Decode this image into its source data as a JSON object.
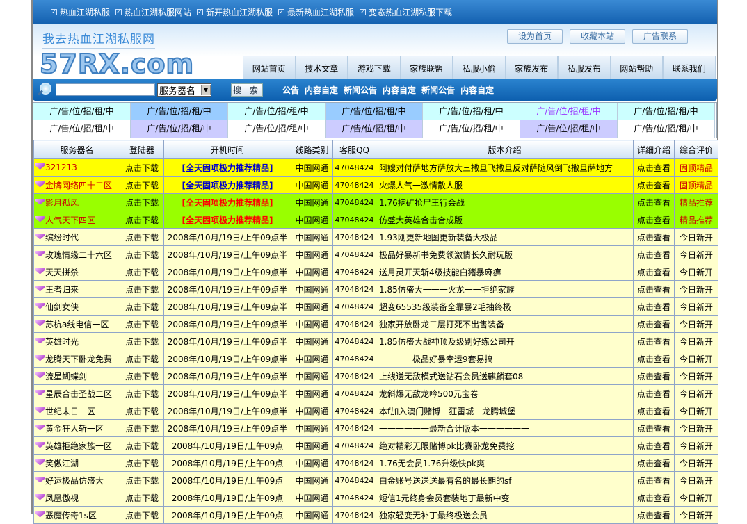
{
  "topbar": {
    "links": [
      "热血江湖私服",
      "热血江湖私服网站",
      "新开热血江湖私服",
      "最新热血江湖私服",
      "变态热血江湖私服下载"
    ]
  },
  "header": {
    "slogan": "我去热血江湖私服网",
    "logo": "57RX.com",
    "buttons": [
      "设为首页",
      "收藏本站",
      "广告联系"
    ],
    "nav": [
      "网站首页",
      "技术文章",
      "游戏下载",
      "家族联盟",
      "私服小偷",
      "家族发布",
      "私服发布",
      "网站帮助",
      "联系我们"
    ]
  },
  "search": {
    "value": "",
    "select": "服务器名",
    "button": "搜 索",
    "notices": [
      "公告",
      "内容自定",
      "新闻公告",
      "内容自定",
      "新闻公告",
      "内容自定"
    ]
  },
  "ads": {
    "rows": [
      [
        {
          "t": "广/告/位/招/租/中",
          "bg": "#ccffff",
          "c": "#000"
        },
        {
          "t": "广/告/位/招/租/中",
          "bg": "#99ccff",
          "c": "#000"
        },
        {
          "t": "广/告/位/招/租/中",
          "bg": "#ccffff",
          "c": "#000"
        },
        {
          "t": "广/告/位/招/租/中",
          "bg": "#99ccff",
          "c": "#000"
        },
        {
          "t": "广/告/位/招/租/中",
          "bg": "#ccffff",
          "c": "#000"
        },
        {
          "t": "广/告/位/招/租/中",
          "bg": "#ccffff",
          "c": "#9933ff"
        },
        {
          "t": "广/告/位/招/租/中",
          "bg": "#ccffff",
          "c": "#000"
        }
      ],
      [
        {
          "t": "广/告/位/招/租/中",
          "bg": "#ffffff",
          "c": "#000"
        },
        {
          "t": "广/告/位/招/租/中",
          "bg": "#ccccff",
          "c": "#000"
        },
        {
          "t": "广/告/位/招/租/中",
          "bg": "#ffffff",
          "c": "#000"
        },
        {
          "t": "广/告/位/招/租/中",
          "bg": "#ccccff",
          "c": "#000"
        },
        {
          "t": "广/告/位/招/租/中",
          "bg": "#ffffff",
          "c": "#000"
        },
        {
          "t": "广/告/位/招/租/中",
          "bg": "#ccccff",
          "c": "#000"
        },
        {
          "t": "广/告/位/招/租/中",
          "bg": "#ffffff",
          "c": "#000"
        }
      ]
    ]
  },
  "table": {
    "headers": [
      "服务器名",
      "登陆器",
      "开机时间",
      "线路类别",
      "客服QQ",
      "版本介绍",
      "详细介绍",
      "综合评价"
    ],
    "rows": [
      {
        "name": "321213",
        "dl": "点击下载",
        "time": "[全天固项极力推荐精品]",
        "line": "中国网通",
        "qq": "47048424",
        "ver": "阿嫂对付萨地方萨放大三撒旦飞撒旦反对萨随风倒飞撒旦萨地方",
        "detail": "点击查看",
        "rate": "固顶精品",
        "bg": "#ffff00",
        "nameColor": "#cc0000",
        "timeColor": "#0000cc",
        "rateColor": "#cc0000"
      },
      {
        "name": "金牌网络四十二区",
        "dl": "点击下载",
        "time": "[全天固项极力推荐精品]",
        "line": "中国网通",
        "qq": "47048424",
        "ver": "火爆人气一激情散人服",
        "detail": "点击查看",
        "rate": "固顶精品",
        "bg": "#ffff00",
        "nameColor": "#cc0000",
        "timeColor": "#0000cc",
        "rateColor": "#cc0000"
      },
      {
        "name": "影月孤风",
        "dl": "点击下载",
        "time": "[全天固项极力推荐精品]",
        "line": "中国网通",
        "qq": "47048424",
        "ver": "1.76挖矿抢尸王行会战",
        "detail": "点击查看",
        "rate": "精品推荐",
        "bg": "#99ff00",
        "nameColor": "#cc0000",
        "timeColor": "#ff0000",
        "rateColor": "#cc0000"
      },
      {
        "name": "人气天下四区",
        "dl": "点击下载",
        "time": "[全天固项极力推荐精品]",
        "line": "中国网通",
        "qq": "47048424",
        "ver": "仿盛大英雄合击合成版",
        "detail": "点击查看",
        "rate": "精品推荐",
        "bg": "#99ff00",
        "nameColor": "#cc0000",
        "timeColor": "#ff0000",
        "rateColor": "#cc0000"
      },
      {
        "name": "缤纷时代",
        "dl": "点击下载",
        "time": "2008年/10月/19日/上午09点半",
        "line": "中国网通",
        "qq": "47048424",
        "ver": "1.93刚更新地图更新装备大极品",
        "detail": "点击查看",
        "rate": "今日新开"
      },
      {
        "name": "玫瑰情缘二十六区",
        "dl": "点击下载",
        "time": "2008年/10月/19日/上午09点半",
        "line": "中国网通",
        "qq": "47048424",
        "ver": "极品好暴新书免费领激情长久耐玩版",
        "detail": "点击查看",
        "rate": "今日新开"
      },
      {
        "name": "天天拼杀",
        "dl": "点击下载",
        "time": "2008年/10月/19日/上午09点半",
        "line": "中国网通",
        "qq": "47048424",
        "ver": "送月灵开天斩4级技能白猪暴麻痹",
        "detail": "点击查看",
        "rate": "今日新开"
      },
      {
        "name": "王者归来",
        "dl": "点击下载",
        "time": "2008年/10月/19日/上午09点半",
        "line": "中国网通",
        "qq": "47048424",
        "ver": "1.85仿盛大一一一火龙一一拒绝家族",
        "detail": "点击查看",
        "rate": "今日新开"
      },
      {
        "name": "仙剑女侠",
        "dl": "点击下载",
        "time": "2008年/10月/19日/上午09点半",
        "line": "中国网通",
        "qq": "47048424",
        "ver": "超变65535级装备全靠暴2毛抽终极",
        "detail": "点击查看",
        "rate": "今日新开"
      },
      {
        "name": "苏杭a线电信一区",
        "dl": "点击下载",
        "time": "2008年/10月/19日/上午09点半",
        "line": "中国网通",
        "qq": "47048424",
        "ver": "独家开放卧龙二层打死不出售装备",
        "detail": "点击查看",
        "rate": "今日新开"
      },
      {
        "name": "英雄时光",
        "dl": "点击下载",
        "time": "2008年/10月/19日/上午09点半",
        "line": "中国网通",
        "qq": "47048424",
        "ver": "1.85仿盛大战神顶及级别好练公司开",
        "detail": "点击查看",
        "rate": "今日新开"
      },
      {
        "name": "龙腾天下卧龙免费",
        "dl": "点击下载",
        "time": "2008年/10月/19日/上午09点半",
        "line": "中国网通",
        "qq": "47048424",
        "ver": "一一一一极品好暴幸运9套易搞一一一",
        "detail": "点击查看",
        "rate": "今日新开"
      },
      {
        "name": "流星蝴蝶剑",
        "dl": "点击下载",
        "time": "2008年/10月/19日/上午09点半",
        "line": "中国网通",
        "qq": "47048424",
        "ver": "上线送无敌模式送钻石会员送麒麟套08",
        "detail": "点击查看",
        "rate": "今日新开"
      },
      {
        "name": "星辰合击圣战二区",
        "dl": "点击下载",
        "time": "2008年/10月/19日/上午09点半",
        "line": "中国网通",
        "qq": "47048424",
        "ver": "龙斜爆无敌龙吟500元宝卷",
        "detail": "点击查看",
        "rate": "今日新开"
      },
      {
        "name": "世纪末日一区",
        "dl": "点击下载",
        "time": "2008年/10月/19日/上午09点半",
        "line": "中国网通",
        "qq": "47048424",
        "ver": "本f加入澳门赌博一狂雷城一龙腾城堡一",
        "detail": "点击查看",
        "rate": "今日新开"
      },
      {
        "name": "黄金狂人斩一区",
        "dl": "点击下载",
        "time": "2008年/10月/19日/上午09点半",
        "line": "中国网通",
        "qq": "47048424",
        "ver": "一一一一一一最新合计版本一一一一一一",
        "detail": "点击查看",
        "rate": "今日新开"
      },
      {
        "name": "英雄拒绝家族一区",
        "dl": "点击下载",
        "time": "2008年/10月/19日/上午09点",
        "line": "中国网通",
        "qq": "47048424",
        "ver": "绝对精彩无限赌博pk比赛卧龙免费挖",
        "detail": "点击查看",
        "rate": "今日新开"
      },
      {
        "name": "笑傲江湖",
        "dl": "点击下载",
        "time": "2008年/10月/19日/上午09点",
        "line": "中国网通",
        "qq": "47048424",
        "ver": "1.76无会员1.76升级快pk爽",
        "detail": "点击查看",
        "rate": "今日新开"
      },
      {
        "name": "好运极品仿盛大",
        "dl": "点击下载",
        "time": "2008年/10月/19日/上午09点",
        "line": "中国网通",
        "qq": "47048424",
        "ver": "白金账号送送送最有名的最长期的sf",
        "detail": "点击查看",
        "rate": "今日新开"
      },
      {
        "name": "凤凰傲视",
        "dl": "点击下载",
        "time": "2008年/10月/19日/上午09点",
        "line": "中国网通",
        "qq": "47048424",
        "ver": "短信1元终身会员套装地丁最新中变",
        "detail": "点击查看",
        "rate": "今日新开"
      },
      {
        "name": "恶魔传奇1s区",
        "dl": "点击下载",
        "time": "2008年/10月/19日/上午09点",
        "line": "中国网通",
        "qq": "47048424",
        "ver": "独家轻变无补丁最终极送会员",
        "detail": "点击查看",
        "rate": "今日新开"
      }
    ]
  },
  "colors": {
    "defaultRow": "#ffffcc",
    "topbar": "#1461b0"
  }
}
